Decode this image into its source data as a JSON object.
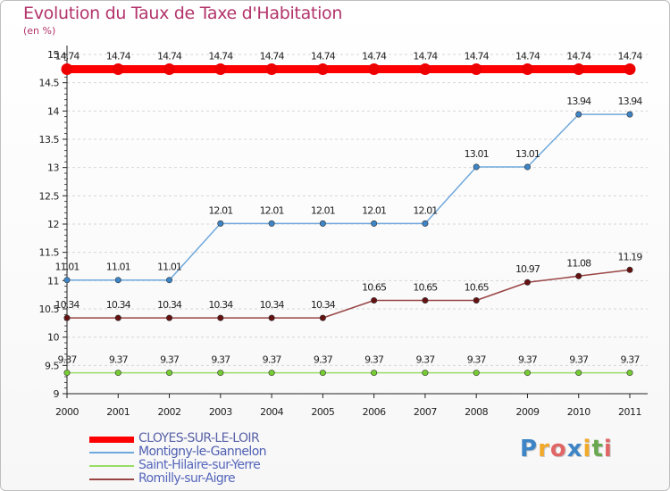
{
  "chart_data": {
    "type": "line",
    "title": "Evolution du Taux de Taxe d'Habitation",
    "ylabel": "(en %)",
    "xlabel": "",
    "ylim": [
      9,
      15
    ],
    "yticks": [
      "9",
      "9.5",
      "10",
      "10.5",
      "11",
      "11.5",
      "12",
      "12.5",
      "13",
      "13.5",
      "14",
      "14.5",
      "15"
    ],
    "categories": [
      "2000",
      "2001",
      "2002",
      "2003",
      "2004",
      "2005",
      "2006",
      "2007",
      "2008",
      "2009",
      "2010",
      "2011"
    ],
    "grid": "horizontal dashed",
    "legend_position": "bottom-left",
    "series": [
      {
        "name": "CLOYES-SUR-LE-LOIR",
        "color": "#ff0000",
        "marker_color": "#ee0000",
        "values": [
          14.74,
          14.74,
          14.74,
          14.74,
          14.74,
          14.74,
          14.74,
          14.74,
          14.74,
          14.74,
          14.74,
          14.74
        ],
        "labels": [
          "14.74",
          "14.74",
          "14.74",
          "14.74",
          "14.74",
          "14.74",
          "14.74",
          "14.74",
          "14.74",
          "14.74",
          "14.74",
          "14.74"
        ]
      },
      {
        "name": "Montigny-le-Gannelon",
        "color": "#6fa8dc",
        "marker_color": "#3d85c6",
        "values": [
          11.01,
          11.01,
          11.01,
          12.01,
          12.01,
          12.01,
          12.01,
          12.01,
          13.01,
          13.01,
          13.94,
          13.94
        ],
        "labels": [
          "11.01",
          "11.01",
          "11.01",
          "12.01",
          "12.01",
          "12.01",
          "12.01",
          "12.01",
          "13.01",
          "13.01",
          "13.94",
          "13.94"
        ]
      },
      {
        "name": "Saint-Hilaire-sur-Yerre",
        "color": "#99dd66",
        "marker_color": "#77cc33",
        "values": [
          9.37,
          9.37,
          9.37,
          9.37,
          9.37,
          9.37,
          9.37,
          9.37,
          9.37,
          9.37,
          9.37,
          9.37
        ],
        "labels": [
          "9.37",
          "9.37",
          "9.37",
          "9.37",
          "9.37",
          "9.37",
          "9.37",
          "9.37",
          "9.37",
          "9.37",
          "9.37",
          "9.37"
        ]
      },
      {
        "name": "Romilly-sur-Aigre",
        "color": "#994444",
        "marker_color": "#661111",
        "values": [
          10.34,
          10.34,
          10.34,
          10.34,
          10.34,
          10.34,
          10.65,
          10.65,
          10.65,
          10.97,
          11.08,
          11.19
        ],
        "labels": [
          "10.34",
          "10.34",
          "10.34",
          "10.34",
          "10.34",
          "10.34",
          "10.65",
          "10.65",
          "10.65",
          "10.97",
          "11.08",
          "11.19"
        ]
      }
    ]
  },
  "legend_colors": {
    "CLOYES-SUR-LE-LOIR": "#5a63a8",
    "Montigny-le-Gannelon": "#4f5fb2",
    "Saint-Hilaire-sur-Yerre": "#5566bb",
    "Romilly-sur-Aigre": "#5566bb"
  },
  "brand": {
    "letters": [
      "P",
      "r",
      "o",
      "x",
      "i",
      "t",
      "i"
    ],
    "colors": [
      "#3d85c6",
      "#f1a92b",
      "#e06666",
      "#3d85c6",
      "#f1a92b",
      "#6aa84f",
      "#e06666"
    ]
  }
}
